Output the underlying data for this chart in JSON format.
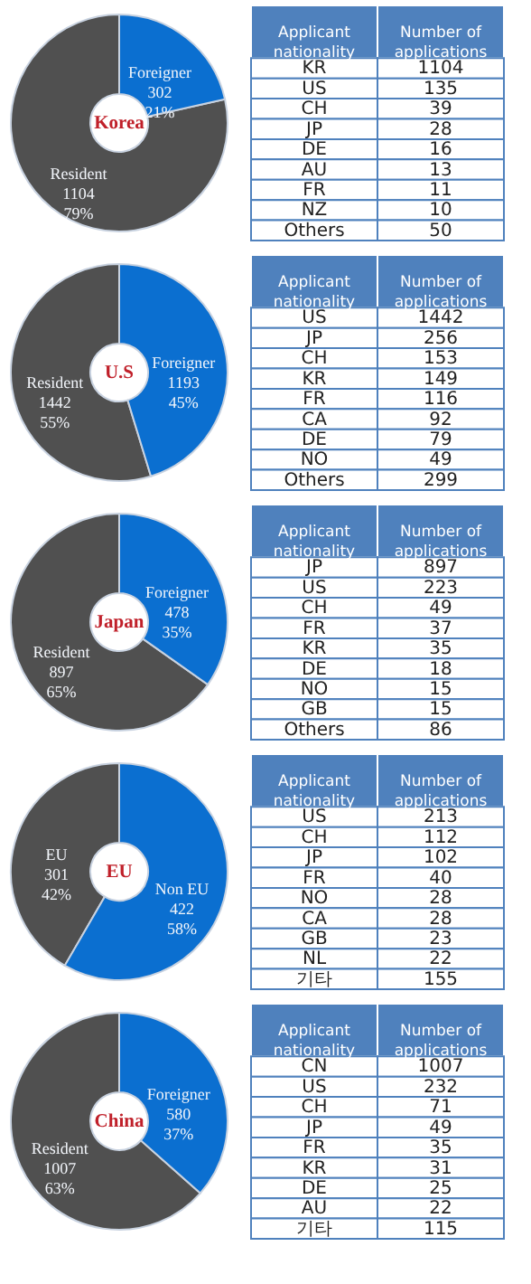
{
  "chart_data": [
    {
      "type": "donut",
      "title": "Korea",
      "categories": [
        "Resident",
        "Foreigner"
      ],
      "values": [
        1104,
        302
      ],
      "colors": [
        "#505050",
        "#0b6fd0"
      ],
      "value_labels": [
        "1104\n79%",
        "302\n21%"
      ],
      "legend": false
    },
    {
      "type": "other",
      "xlabel": "Applicant nationality",
      "ylabel": "Number of applications",
      "categories": [
        "KR",
        "US",
        "CH",
        "JP",
        "DE",
        "AU",
        "FR",
        "NZ",
        "Others"
      ],
      "values": [
        1104,
        135,
        39,
        28,
        16,
        13,
        11,
        10,
        50
      ],
      "data_labels": true
    },
    {
      "type": "donut",
      "title": "U.S",
      "categories": [
        "Resident",
        "Foreigner"
      ],
      "values": [
        1442,
        1193
      ],
      "colors": [
        "#505050",
        "#0b6fd0"
      ],
      "value_labels": [
        "1442\n55%",
        "1193\n45%"
      ],
      "legend": false
    },
    {
      "type": "other",
      "xlabel": "Applicant nationality",
      "ylabel": "Number of applications",
      "categories": [
        "US",
        "JP",
        "CH",
        "KR",
        "FR",
        "CA",
        "DE",
        "NO",
        "Others"
      ],
      "values": [
        1442,
        256,
        153,
        149,
        116,
        92,
        79,
        49,
        299
      ],
      "data_labels": true
    },
    {
      "type": "donut",
      "title": "Japan",
      "categories": [
        "Resident",
        "Foreigner"
      ],
      "values": [
        897,
        478
      ],
      "colors": [
        "#505050",
        "#0b6fd0"
      ],
      "value_labels": [
        "897\n65%",
        "478\n35%"
      ],
      "legend": false
    },
    {
      "type": "other",
      "xlabel": "Applicant nationality",
      "ylabel": "Number of applications",
      "categories": [
        "JP",
        "US",
        "CH",
        "FR",
        "KR",
        "DE",
        "NO",
        "GB",
        "Others"
      ],
      "values": [
        897,
        223,
        49,
        37,
        35,
        18,
        15,
        15,
        86
      ],
      "data_labels": true
    },
    {
      "type": "donut",
      "title": "EU",
      "categories": [
        "EU",
        "Non EU"
      ],
      "values": [
        301,
        422
      ],
      "colors": [
        "#505050",
        "#0b6fd0"
      ],
      "value_labels": [
        "301\n42%",
        "422\n58%"
      ],
      "legend": false
    },
    {
      "type": "other",
      "xlabel": "Applicant nationality",
      "ylabel": "Number of applications",
      "categories": [
        "US",
        "CH",
        "JP",
        "FR",
        "NO",
        "CA",
        "GB",
        "NL",
        "기타"
      ],
      "values": [
        213,
        112,
        102,
        40,
        28,
        28,
        23,
        22,
        155
      ],
      "data_labels": true
    },
    {
      "type": "donut",
      "title": "China",
      "categories": [
        "Resident",
        "Foreigner"
      ],
      "values": [
        1007,
        580
      ],
      "colors": [
        "#505050",
        "#0b6fd0"
      ],
      "value_labels": [
        "1007\n63%",
        "580\n37%"
      ],
      "legend": false
    },
    {
      "type": "other",
      "xlabel": "Applicant nationality",
      "ylabel": "Number of applications",
      "categories": [
        "CN",
        "US",
        "CH",
        "JP",
        "FR",
        "KR",
        "DE",
        "AU",
        "기타"
      ],
      "values": [
        1007,
        232,
        71,
        49,
        35,
        31,
        25,
        22,
        115
      ],
      "data_labels": true
    }
  ]
}
